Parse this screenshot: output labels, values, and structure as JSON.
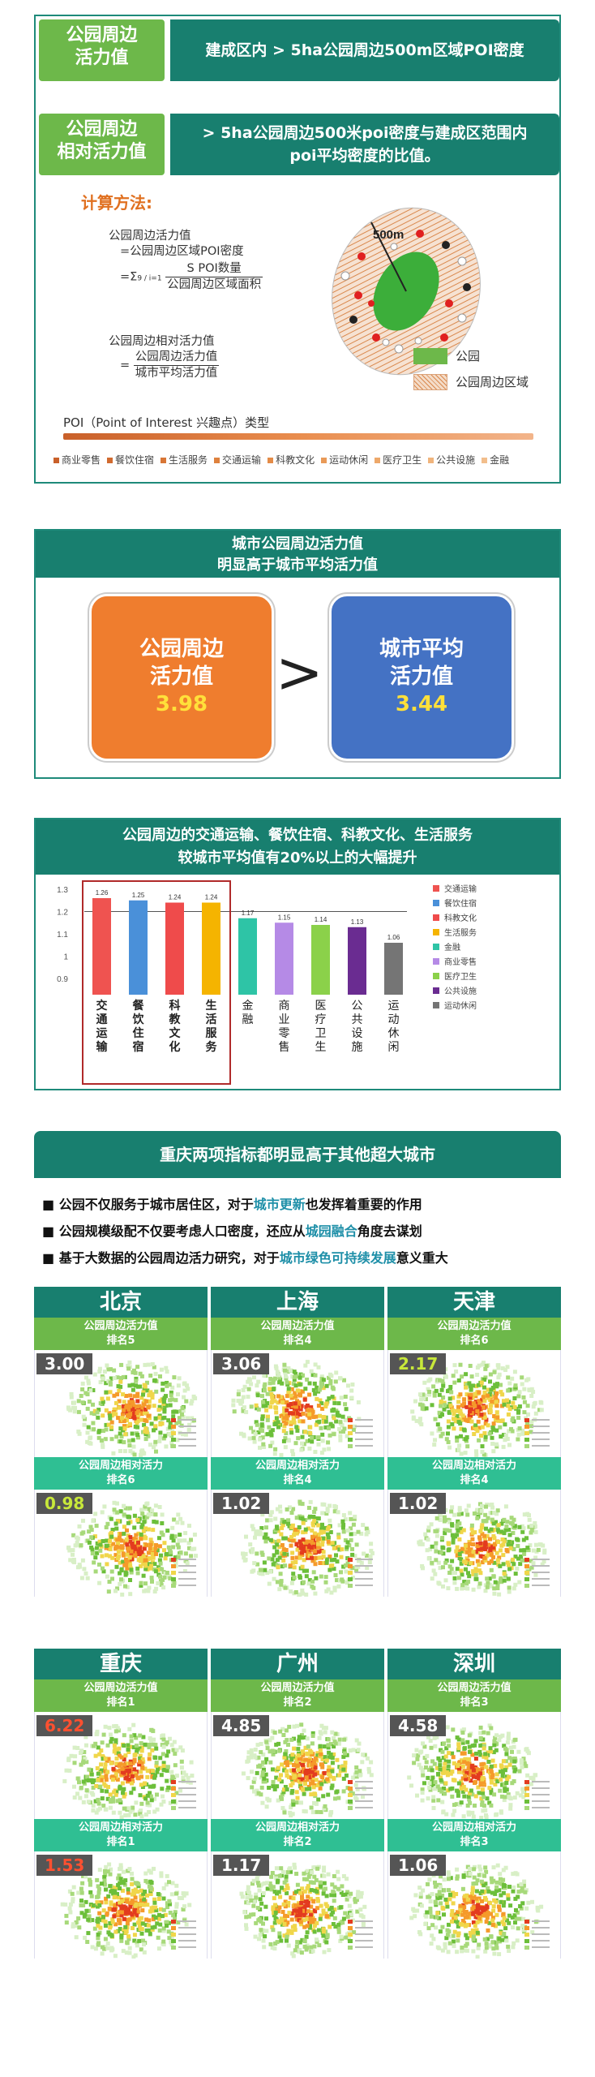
{
  "section1": {
    "row1": {
      "label_l1": "公园周边",
      "label_l2": "活力值",
      "desc": "建成区内 > 5ha公园周边500m区域POI密度"
    },
    "row2": {
      "label_l1": "公园周边",
      "label_l2": "相对活力值",
      "desc_l1": "> 5ha公园周边500米poi密度与建成区范围内",
      "desc_l2": "poi平均密度的比值。"
    },
    "calc_title": "计算方法:",
    "f1_l1": "公园周边活力值",
    "f1_l2": "=公园周边区域POI密度",
    "f1_l3_prefix": "=Σ",
    "f1_sum_limits": "9 / i=1",
    "f1_num": "S POI数量",
    "f1_den": "公园周边区域面积",
    "f2_l1": "公园周边相对活力值",
    "f2_num": "公园周边活力值",
    "f2_den": "城市平均活力值",
    "f2_eq": "=",
    "diagram_label": "500m",
    "legend_park": "公园",
    "legend_area": "公园周边区域",
    "poi_title": "POI（Point of Interest 兴趣点）类型",
    "poi_categories": [
      {
        "name": "商业零售",
        "color": "#c9602a"
      },
      {
        "name": "餐饮住宿",
        "color": "#d16b30"
      },
      {
        "name": "生活服务",
        "color": "#d87636"
      },
      {
        "name": "交通运输",
        "color": "#de813e"
      },
      {
        "name": "科教文化",
        "color": "#e48c48"
      },
      {
        "name": "运动休闲",
        "color": "#e99a58"
      },
      {
        "name": "医疗卫生",
        "color": "#eda86a"
      },
      {
        "name": "公共设施",
        "color": "#f0b47c"
      },
      {
        "name": "金融",
        "color": "#f2be8c"
      }
    ]
  },
  "section2": {
    "title_l1": "城市公园周边活力值",
    "title_l2": "明显高于城市平均活力值",
    "left_l1": "公园周边",
    "left_l2": "活力值",
    "left_val": "3.98",
    "right_l1": "城市平均",
    "right_l2": "活力值",
    "right_val": "3.44",
    "op": ">"
  },
  "section3": {
    "title_l1": "公园周边的交通运输、餐饮住宿、科教文化、生活服务",
    "title_l2": "较城市平均值有20%以上的大幅提升"
  },
  "chart_data": {
    "type": "bar",
    "categories": [
      "交通运输",
      "餐饮住宿",
      "科教文化",
      "生活服务",
      "金融",
      "商业零售",
      "医疗卫生",
      "公共设施",
      "运动休闲"
    ],
    "values": [
      1.26,
      1.25,
      1.24,
      1.24,
      1.17,
      1.15,
      1.14,
      1.13,
      1.06
    ],
    "colors": [
      "#ef5350",
      "#4a90d9",
      "#ef4b4b",
      "#f5b400",
      "#2ec4a6",
      "#b58ae6",
      "#8bd14a",
      "#6a2c91",
      "#757575"
    ],
    "yticks": [
      "0.9",
      "1",
      "1.1",
      "1.2",
      "1.3"
    ],
    "ylim": [
      0.9,
      1.3
    ],
    "reference_line": 1.2,
    "highlight_first": 4,
    "legend": [
      {
        "name": "交通运输",
        "color": "#ef5350"
      },
      {
        "name": "餐饮住宿",
        "color": "#4a90d9"
      },
      {
        "name": "科教文化",
        "color": "#ef4b4b"
      },
      {
        "name": "生活服务",
        "color": "#f5b400"
      },
      {
        "name": "金融",
        "color": "#2ec4a6"
      },
      {
        "name": "商业零售",
        "color": "#b58ae6"
      },
      {
        "name": "医疗卫生",
        "color": "#8bd14a"
      },
      {
        "name": "公共设施",
        "color": "#6a2c91"
      },
      {
        "name": "运动休闲",
        "color": "#757575"
      }
    ]
  },
  "section4": {
    "title": "重庆两项指标都明显高于其他超大城市",
    "b1_pre": "公园不仅服务于城市居住区，对于",
    "b1_hl": "城市更新",
    "b1_post": "也发挥着重要的作用",
    "b2_pre": "公园规模级配不仅要考虑人口密度，还应从",
    "b2_hl": "城园融合",
    "b2_post": "角度去谋划",
    "b3_pre": "基于大数据的公园周边活力研究，对于",
    "b3_hl": "城市绿色可持续发展",
    "b3_post": "意义重大",
    "cities": [
      {
        "name": "北京",
        "a_title": "公园周边活力值",
        "a_rank": "排名5",
        "a_score": "3.00",
        "a_style": "plain",
        "b_title": "公园周边相对活力",
        "b_rank": "排名6",
        "b_score": "0.98",
        "b_style": "yellow"
      },
      {
        "name": "上海",
        "a_title": "公园周边活力值",
        "a_rank": "排名4",
        "a_score": "3.06",
        "a_style": "plain",
        "b_title": "公园周边相对活力",
        "b_rank": "排名4",
        "b_score": "1.02",
        "b_style": "plain"
      },
      {
        "name": "天津",
        "a_title": "公园周边活力值",
        "a_rank": "排名6",
        "a_score": "2.17",
        "a_style": "yellow",
        "b_title": "公园周边相对活力",
        "b_rank": "排名4",
        "b_score": "1.02",
        "b_style": "plain"
      },
      {
        "name": "重庆",
        "a_title": "公园周边活力值",
        "a_rank": "排名1",
        "a_score": "6.22",
        "a_style": "red",
        "b_title": "公园周边相对活力",
        "b_rank": "排名1",
        "b_score": "1.53",
        "b_style": "red"
      },
      {
        "name": "广州",
        "a_title": "公园周边活力值",
        "a_rank": "排名2",
        "a_score": "4.85",
        "a_style": "plain",
        "b_title": "公园周边相对活力",
        "b_rank": "排名2",
        "b_score": "1.17",
        "b_style": "plain"
      },
      {
        "name": "深圳",
        "a_title": "公园周边活力值",
        "a_rank": "排名3",
        "a_score": "4.58",
        "a_style": "plain",
        "b_title": "公园周边相对活力",
        "b_rank": "排名3",
        "b_score": "1.06",
        "b_style": "plain"
      }
    ]
  },
  "colors": {
    "teal": "#187f6f",
    "green": "#6db84a",
    "orange": "#ef7d2e",
    "blue": "#4472c4",
    "yellow": "#ffe03a"
  }
}
